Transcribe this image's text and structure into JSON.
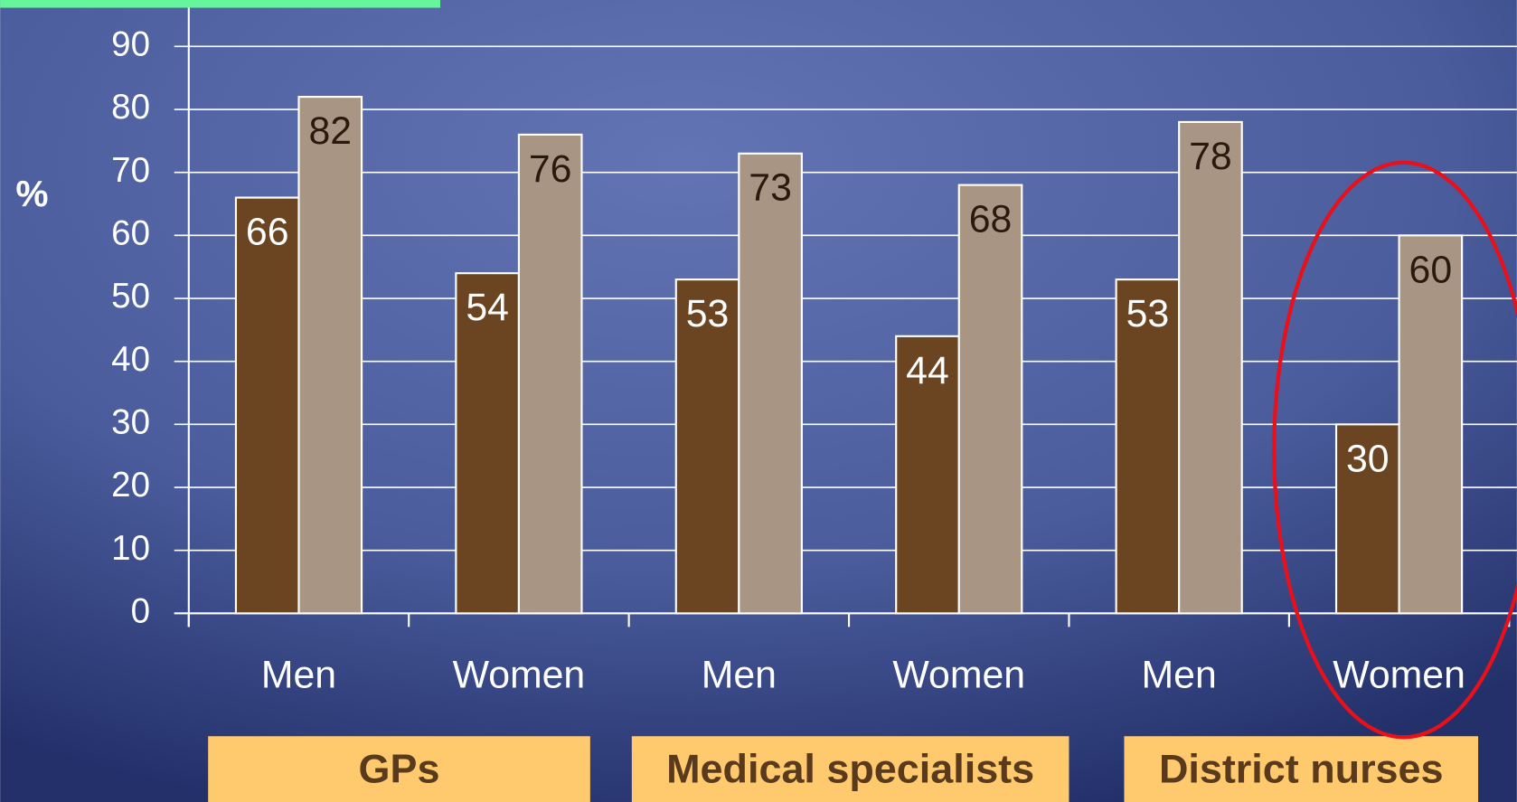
{
  "chart_data": {
    "type": "bar",
    "y_label": "%",
    "categories": [
      "Men",
      "Women",
      "Men",
      "Women",
      "Men",
      "Women"
    ],
    "groups": [
      "GPs",
      "Medical specialists",
      "District nurses"
    ],
    "series": [
      {
        "color": "#6b4522",
        "values": [
          66,
          54,
          53,
          44,
          53,
          30
        ]
      },
      {
        "color": "#a89584",
        "values": [
          82,
          76,
          73,
          68,
          78,
          60
        ]
      }
    ],
    "ylim": [
      0,
      90
    ],
    "yticks": [
      0,
      10,
      20,
      30,
      40,
      50,
      60,
      70,
      80,
      90
    ],
    "grid": true
  }
}
